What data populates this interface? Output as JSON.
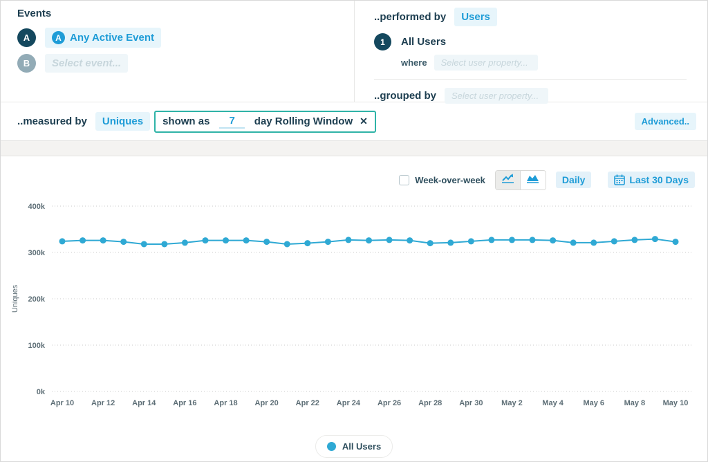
{
  "colors": {
    "accent_blue": "#1e9cd7",
    "line_blue": "#2fa9d4",
    "navy": "#1d3e50",
    "teal_border": "#2fb3a7",
    "grid_gray": "#c9c9c9",
    "tick_gray": "#5d6e76"
  },
  "events_panel": {
    "title": "Events",
    "row_a": {
      "badge": "A",
      "icon_glyph": "A",
      "label": "Any Active Event"
    },
    "row_b": {
      "badge": "B",
      "placeholder": "Select event..."
    }
  },
  "performed_panel": {
    "label": "..performed by",
    "value": "Users",
    "segment": {
      "badge": "1",
      "label": "All Users",
      "where_label": "where",
      "where_placeholder": "Select user property..."
    },
    "grouped": {
      "label": "..grouped by",
      "placeholder": "Select user property..."
    }
  },
  "measured_row": {
    "label": "..measured by",
    "metric": "Uniques",
    "shown_as_label": "shown as",
    "window_value": "7",
    "window_label": "day Rolling Window",
    "close_glyph": "✕",
    "advanced_label": "Advanced.."
  },
  "chart_controls": {
    "wow_label": "Week-over-week",
    "daily_label": "Daily",
    "range_label": "Last 30 Days"
  },
  "legend": {
    "label": "All Users"
  },
  "chart_data": {
    "type": "line",
    "title": "",
    "xlabel": "",
    "ylabel": "Uniques",
    "ylim": [
      0,
      400
    ],
    "y_ticks": [
      "0k",
      "100k",
      "200k",
      "300k",
      "400k"
    ],
    "values_unit": "thousands",
    "grid": "horizontal-dotted",
    "legend_position": "bottom",
    "x_tick_every": 2,
    "x": [
      "Apr 10",
      "Apr 11",
      "Apr 12",
      "Apr 13",
      "Apr 14",
      "Apr 15",
      "Apr 16",
      "Apr 17",
      "Apr 18",
      "Apr 19",
      "Apr 20",
      "Apr 21",
      "Apr 22",
      "Apr 23",
      "Apr 24",
      "Apr 25",
      "Apr 26",
      "Apr 27",
      "Apr 28",
      "Apr 29",
      "Apr 30",
      "May 1",
      "May 2",
      "May 3",
      "May 4",
      "May 5",
      "May 6",
      "May 7",
      "May 8",
      "May 9",
      "May 10"
    ],
    "series": [
      {
        "name": "All Users",
        "values": [
          324,
          326,
          326,
          323,
          318,
          318,
          321,
          326,
          326,
          326,
          323,
          318,
          320,
          323,
          327,
          326,
          327,
          326,
          320,
          321,
          324,
          327,
          327,
          327,
          326,
          321,
          321,
          324,
          327,
          329,
          323
        ]
      }
    ]
  }
}
